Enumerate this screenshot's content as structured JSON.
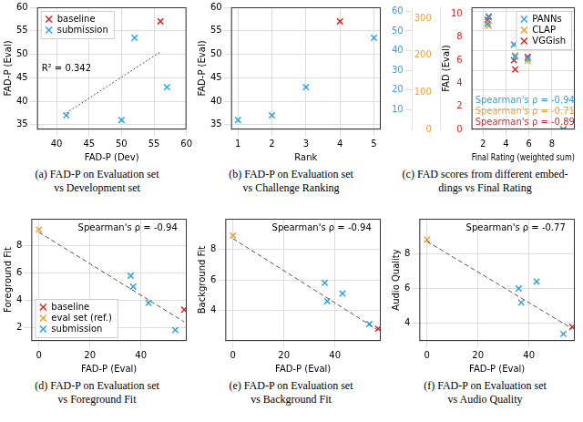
{
  "chart_data": [
    {
      "type": "scatter",
      "caption": [
        "(a) FAD-P on Evaluation set",
        "vs Development set"
      ],
      "x_label": "FAD-P (Dev)",
      "y_label": "FAD-P (Eval)",
      "xlim": [
        37,
        60
      ],
      "xticks": [
        40,
        45,
        50,
        55,
        60
      ],
      "ylim": [
        34,
        60
      ],
      "yticks": [
        35,
        40,
        45,
        50,
        55,
        60
      ],
      "grid": true,
      "legend": "upper left",
      "series": [
        {
          "name": "baseline",
          "color": "#d62728",
          "marker": "x",
          "x": [
            56
          ],
          "values": [
            57
          ]
        },
        {
          "name": "submission",
          "color": "#2ea4e0",
          "marker": "x",
          "x": [
            41.5,
            50,
            52,
            57
          ],
          "values": [
            37,
            36,
            53.5,
            43
          ]
        }
      ],
      "trend_line": {
        "x": [
          41.5,
          56
        ],
        "values": [
          37.5,
          50.5
        ],
        "color": "#555555",
        "line_style": "dotted"
      },
      "annotations": [
        {
          "text": "R² = 0.342",
          "color": "#000000"
        }
      ]
    },
    {
      "type": "scatter",
      "caption": [
        "(b) FAD-P on Evaluation set",
        "vs Challenge Ranking"
      ],
      "x_label": "Rank",
      "y_label": "FAD-P (Eval)",
      "xlim": [
        0.8,
        5.2
      ],
      "xticks": [
        1,
        2,
        3,
        4,
        5
      ],
      "ylim": [
        34,
        60
      ],
      "yticks": [
        35,
        40,
        45,
        50,
        55,
        60
      ],
      "grid": true,
      "series": [
        {
          "name": "baseline",
          "color": "#d62728",
          "marker": "x",
          "x": [
            4
          ],
          "values": [
            57
          ]
        },
        {
          "name": "submission",
          "color": "#2ea4e0",
          "marker": "x",
          "x": [
            1,
            2,
            3,
            5
          ],
          "values": [
            36,
            37,
            43,
            53.5
          ]
        }
      ]
    },
    {
      "type": "scatter",
      "caption": [
        "(c) FAD scores from different embed-",
        "dings vs Final Rating"
      ],
      "x_label": "Final Rating (weighted sum)",
      "y_label": "FAD (Eval)",
      "xlim": [
        1,
        10
      ],
      "xticks": [
        2,
        4,
        6,
        8
      ],
      "ylim": [
        0,
        62
      ],
      "yticks": [
        10,
        20,
        30,
        40,
        50,
        60
      ],
      "y2lim": [
        0,
        330
      ],
      "y2ticks": [
        0,
        100,
        200,
        300
      ],
      "y3lim": [
        0,
        10.6
      ],
      "y3ticks": [
        0,
        2,
        4,
        6,
        8,
        10
      ],
      "grid": true,
      "legend": "upper right",
      "series": [
        {
          "name": "PANNs",
          "color": "#2ea4e0",
          "marker": "x",
          "axis": "y",
          "x": [
            2.4,
            2.5,
            4.7,
            4.8,
            5.9,
            9.0
          ],
          "values": [
            53.5,
            57,
            43,
            37,
            36,
            0
          ]
        },
        {
          "name": "CLAP",
          "color": "#f0a030",
          "marker": "x",
          "axis": "y2",
          "x": [
            2.4,
            2.5,
            4.7,
            4.8,
            5.9,
            9.0
          ],
          "values": [
            290,
            280,
            230,
            200,
            185,
            0
          ]
        },
        {
          "name": "VGGish",
          "color": "#d62728",
          "marker": "x",
          "axis": "y3",
          "x": [
            2.4,
            2.5,
            4.7,
            4.8,
            5.9,
            9.0
          ],
          "values": [
            9.5,
            9.8,
            6,
            5.2,
            6.3,
            0
          ]
        }
      ],
      "annotations": [
        {
          "text": "Spearman's ρ = -0.94",
          "color": "#2ea4e0"
        },
        {
          "text": "Spearman's ρ = -0.71",
          "color": "#f0a030"
        },
        {
          "text": "Spearman's ρ = -0.89",
          "color": "#d62728"
        }
      ]
    },
    {
      "type": "scatter",
      "caption": [
        "(d) FAD-P on Evaluation set",
        "vs Foreground Fit"
      ],
      "x_label": "FAD-P (Eval)",
      "y_label": "Foreground Fit",
      "xlim": [
        -3,
        58
      ],
      "xticks": [
        0,
        20,
        40
      ],
      "ylim": [
        1,
        10
      ],
      "yticks": [
        2,
        4,
        6,
        8
      ],
      "grid": true,
      "legend": "lower left",
      "series": [
        {
          "name": "baseline",
          "color": "#d62728",
          "marker": "x",
          "x": [
            57
          ],
          "values": [
            3.3
          ]
        },
        {
          "name": "eval set (ref.)",
          "color": "#f0a030",
          "marker": "x",
          "x": [
            0
          ],
          "values": [
            9.2
          ]
        },
        {
          "name": "submission",
          "color": "#2ea4e0",
          "marker": "x",
          "x": [
            36,
            37,
            43,
            53.5
          ],
          "values": [
            5.8,
            5.0,
            3.8,
            1.8
          ]
        }
      ],
      "trend_line": {
        "x": [
          0,
          57
        ],
        "values": [
          9.0,
          2.4
        ],
        "color": "#555555",
        "line_style": "dashed"
      },
      "annotations": [
        {
          "text": "Spearman's ρ = -0.94",
          "color": "#000000"
        }
      ]
    },
    {
      "type": "scatter",
      "caption": [
        "(e) FAD-P on Evaluation set",
        "vs Background Fit"
      ],
      "x_label": "FAD-P (Eval)",
      "y_label": "Background Fit",
      "xlim": [
        -3,
        58
      ],
      "xticks": [
        0,
        20,
        40
      ],
      "ylim": [
        2,
        10
      ],
      "yticks": [
        4,
        6,
        8
      ],
      "grid": true,
      "series": [
        {
          "name": "baseline",
          "color": "#d62728",
          "marker": "x",
          "x": [
            57
          ],
          "values": [
            2.8
          ]
        },
        {
          "name": "eval set (ref.)",
          "color": "#f0a030",
          "marker": "x",
          "x": [
            0
          ],
          "values": [
            8.9
          ]
        },
        {
          "name": "submission",
          "color": "#2ea4e0",
          "marker": "x",
          "x": [
            36,
            37,
            43,
            53.5
          ],
          "values": [
            5.8,
            4.6,
            5.1,
            3.1
          ]
        }
      ],
      "trend_line": {
        "x": [
          0,
          57
        ],
        "values": [
          8.7,
          2.7
        ],
        "color": "#555555",
        "line_style": "dashed"
      },
      "annotations": [
        {
          "text": "Spearman's ρ = -0.94",
          "color": "#000000"
        }
      ]
    },
    {
      "type": "scatter",
      "caption": [
        "(f) FAD-P on Evaluation set",
        "vs Audio Quality"
      ],
      "x_label": "FAD-P (Eval)",
      "y_label": "Audio Quality",
      "xlim": [
        -3,
        58
      ],
      "xticks": [
        0,
        20,
        40
      ],
      "ylim": [
        3,
        10
      ],
      "yticks": [
        4,
        6,
        8
      ],
      "grid": true,
      "series": [
        {
          "name": "baseline",
          "color": "#d62728",
          "marker": "x",
          "x": [
            57
          ],
          "values": [
            3.8
          ]
        },
        {
          "name": "eval set (ref.)",
          "color": "#f0a030",
          "marker": "x",
          "x": [
            0
          ],
          "values": [
            8.8
          ]
        },
        {
          "name": "submission",
          "color": "#2ea4e0",
          "marker": "x",
          "x": [
            36,
            37,
            43,
            53.5
          ],
          "values": [
            6.0,
            5.2,
            6.4,
            3.4
          ]
        }
      ],
      "trend_line": {
        "x": [
          0,
          57
        ],
        "values": [
          8.7,
          3.7
        ],
        "color": "#555555",
        "line_style": "dashed"
      },
      "annotations": [
        {
          "text": "Spearman's ρ = -0.77",
          "color": "#000000"
        }
      ]
    }
  ]
}
